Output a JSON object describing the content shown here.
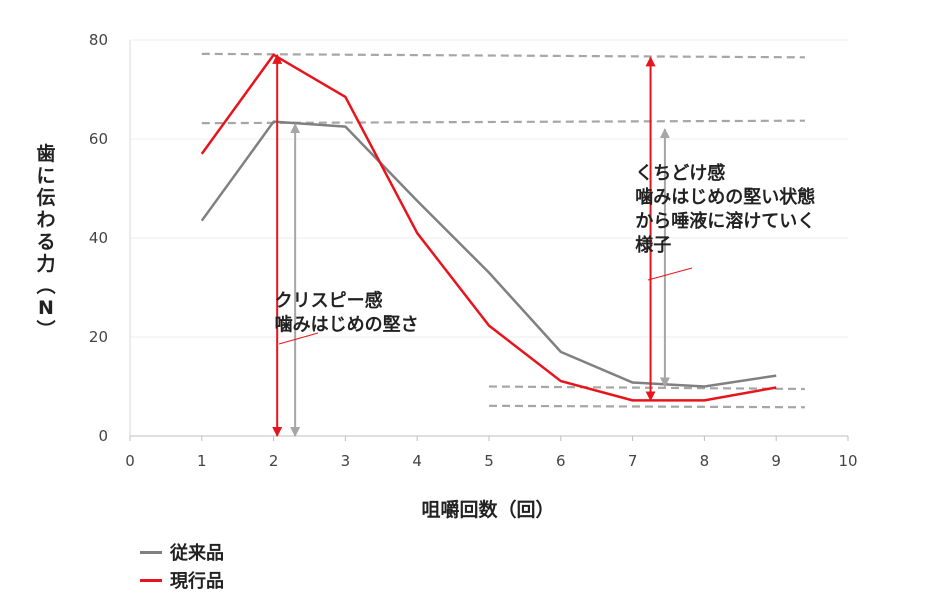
{
  "chart_data": {
    "type": "line",
    "xlabel": "咀嚼回数（回）",
    "ylabel": "歯に伝わる力（N）",
    "xlim": [
      0,
      10
    ],
    "ylim": [
      0,
      80
    ],
    "xticks": [
      "0",
      "1",
      "2",
      "3",
      "4",
      "5",
      "6",
      "7",
      "8",
      "9",
      "10"
    ],
    "yticks": [
      "0",
      "20",
      "40",
      "60",
      "80"
    ],
    "grid": "horizontal",
    "legend_position": "bottom-left",
    "series": [
      {
        "name": "従来品",
        "color": "#808080",
        "x": [
          1,
          2,
          3,
          4,
          5,
          6,
          7,
          8,
          9
        ],
        "y": [
          43.5,
          63.5,
          62.5,
          47.5,
          33,
          17,
          10.8,
          10,
          12.2
        ]
      },
      {
        "name": "現行品",
        "color": "#e8141b",
        "x": [
          1,
          2,
          3,
          4,
          5,
          6,
          7,
          8,
          9
        ],
        "y": [
          57,
          77,
          68.5,
          41,
          22.3,
          11.1,
          7.2,
          7.2,
          9.8
        ]
      }
    ],
    "reference_lines": [
      {
        "x": [
          1,
          9.4
        ],
        "y": [
          77.2,
          76.5
        ]
      },
      {
        "x": [
          1,
          9.4
        ],
        "y": [
          63.2,
          63.7
        ]
      },
      {
        "x": [
          5,
          9.4
        ],
        "y": [
          10,
          9.5
        ]
      },
      {
        "x": [
          5,
          9.4
        ],
        "y": [
          6.1,
          5.8
        ]
      }
    ],
    "arrows": [
      {
        "color": "#e8141b",
        "x": 2.05,
        "y_from": 0,
        "y_to": 77
      },
      {
        "color": "#a6a6a6",
        "x": 2.3,
        "y_from": 0,
        "y_to": 63
      },
      {
        "color": "#e8141b",
        "x": 7.25,
        "y_from": 7.2,
        "y_to": 76.5
      },
      {
        "color": "#a6a6a6",
        "x": 7.45,
        "y_from": 10,
        "y_to": 62
      }
    ],
    "annotations": [
      {
        "lines": [
          "クリスピー感",
          "噛みはじめの堅さ"
        ],
        "x": 2.6,
        "y": 20.5
      },
      {
        "lines": [
          "くちどけ感",
          "噛みはじめの堅い状態",
          "から唾液に溶けていく",
          "様子"
        ],
        "x": 7.9,
        "y": 37
      }
    ]
  }
}
